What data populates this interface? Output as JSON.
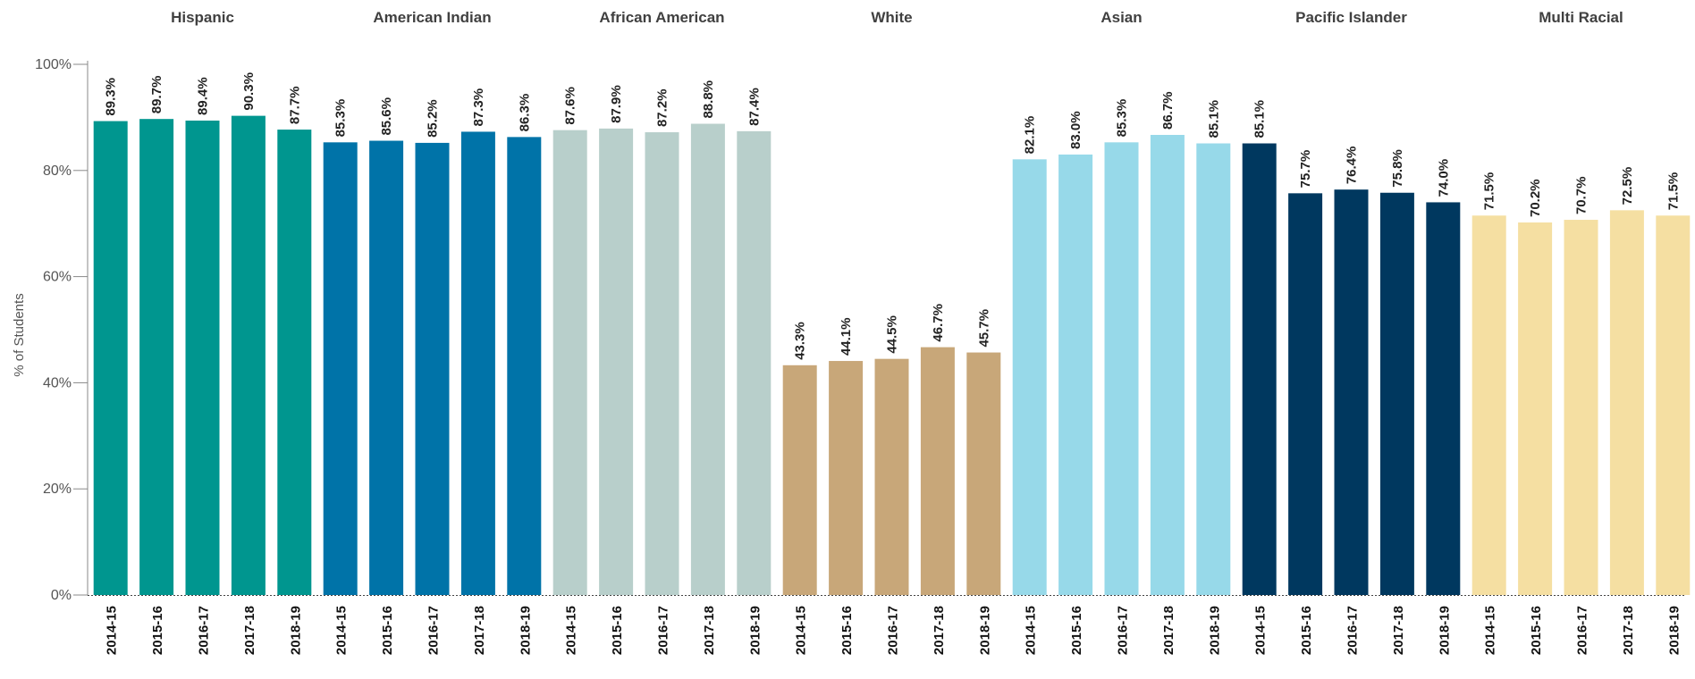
{
  "chart_data": {
    "type": "bar",
    "ylabel": "% of Students",
    "ylim": [
      0,
      100
    ],
    "yticks": [
      "0%",
      "20%",
      "40%",
      "60%",
      "80%",
      "100%"
    ],
    "categories": [
      "2014-15",
      "2015-16",
      "2016-17",
      "2017-18",
      "2018-19"
    ],
    "groups": [
      {
        "name": "Hispanic",
        "color": "#00968F",
        "values": [
          89.3,
          89.7,
          89.4,
          90.3,
          87.7
        ],
        "labels": [
          "89.3%",
          "89.7%",
          "89.4%",
          "90.3%",
          "87.7%"
        ]
      },
      {
        "name": "American Indian",
        "color": "#0073A8",
        "values": [
          85.3,
          85.6,
          85.2,
          87.3,
          86.3
        ],
        "labels": [
          "85.3%",
          "85.6%",
          "85.2%",
          "87.3%",
          "86.3%"
        ]
      },
      {
        "name": "African American",
        "color": "#B8CFCB",
        "values": [
          87.6,
          87.9,
          87.2,
          88.8,
          87.4
        ],
        "labels": [
          "87.6%",
          "87.9%",
          "87.2%",
          "88.8%",
          "87.4%"
        ]
      },
      {
        "name": "White",
        "color": "#C8A779",
        "values": [
          43.3,
          44.1,
          44.5,
          46.7,
          45.7
        ],
        "labels": [
          "43.3%",
          "44.1%",
          "44.5%",
          "46.7%",
          "45.7%"
        ]
      },
      {
        "name": "Asian",
        "color": "#97D9E9",
        "values": [
          82.1,
          83.0,
          85.3,
          86.7,
          85.1
        ],
        "labels": [
          "82.1%",
          "83.0%",
          "85.3%",
          "86.7%",
          "85.1%"
        ]
      },
      {
        "name": "Pacific Islander",
        "color": "#00385F",
        "values": [
          85.1,
          75.7,
          76.4,
          75.8,
          74.0
        ],
        "labels": [
          "85.1%",
          "75.7%",
          "76.4%",
          "75.8%",
          "74.0%"
        ]
      },
      {
        "name": "Multi Racial",
        "color": "#F5DFA2",
        "values": [
          71.5,
          70.2,
          70.7,
          72.5,
          71.5
        ],
        "labels": [
          "71.5%",
          "70.2%",
          "70.7%",
          "72.5%",
          "71.5%"
        ]
      }
    ],
    "grid": false,
    "legend": "none"
  }
}
